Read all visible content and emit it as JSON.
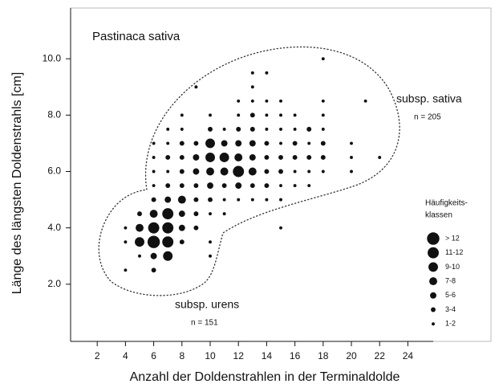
{
  "chart_data": {
    "type": "bubble",
    "annotations": {
      "title": "Pastinaca sativa",
      "sativa": "subsp. sativa",
      "sativa_n": "n = 205",
      "urens": "subsp. urens",
      "urens_n": "n = 151"
    },
    "ylabel": "Länge des längsten Doldenstrahls [cm]",
    "xlabel": "Anzahl der Doldenstrahlen in der Terminaldolde",
    "xlim": [
      0,
      30
    ],
    "ylim": [
      0,
      11.8
    ],
    "xticks": [
      2,
      4,
      6,
      8,
      10,
      12,
      14,
      16,
      18,
      20,
      22,
      24
    ],
    "yticks": [
      {
        "value": 2,
        "label": "2.0"
      },
      {
        "value": 4,
        "label": "4.0"
      },
      {
        "value": 6,
        "label": "6.0"
      },
      {
        "value": 8,
        "label": "8.0"
      },
      {
        "value": 10,
        "label": "10.0"
      }
    ],
    "color": "#111111",
    "series": [
      {
        "x": [
          18,
          13,
          14,
          9,
          13,
          12,
          13,
          14,
          15,
          18,
          21,
          8,
          10,
          12,
          13,
          14,
          15,
          16,
          18,
          7,
          8,
          10,
          11,
          12,
          13,
          14,
          15,
          16,
          17,
          18,
          6,
          7,
          8,
          9,
          10,
          11,
          12,
          13,
          14,
          15,
          16,
          17,
          18,
          20,
          6,
          7,
          8,
          9,
          10,
          11,
          12,
          13,
          14,
          15,
          16,
          17,
          18,
          20,
          22,
          6,
          7,
          8,
          9,
          10,
          11,
          12,
          13,
          14,
          15,
          16,
          17,
          18,
          20,
          6,
          7,
          8,
          9,
          10,
          11,
          12,
          13,
          14,
          15,
          16,
          17,
          6,
          7,
          8,
          9,
          10,
          11,
          12,
          13,
          14,
          15,
          5,
          6,
          7,
          8,
          9,
          10,
          11,
          4,
          5,
          6,
          7,
          8,
          9,
          15,
          4,
          5,
          6,
          7,
          8,
          10,
          5,
          6,
          7,
          10,
          4,
          6
        ],
        "values": [
          10,
          9.5,
          9.5,
          9,
          9,
          8.5,
          8.5,
          8.5,
          8.5,
          8.5,
          8.5,
          8,
          8,
          8,
          8,
          8,
          8,
          8,
          8,
          7.5,
          7.5,
          7.5,
          7.5,
          7.5,
          7.5,
          7.5,
          7.5,
          7.5,
          7.5,
          7.5,
          7,
          7,
          7,
          7,
          7,
          7,
          7,
          7,
          7,
          7,
          7,
          7,
          7,
          7,
          6.5,
          6.5,
          6.5,
          6.5,
          6.5,
          6.5,
          6.5,
          6.5,
          6.5,
          6.5,
          6.5,
          6.5,
          6.5,
          6.5,
          6.5,
          6,
          6,
          6,
          6,
          6,
          6,
          6,
          6,
          6,
          6,
          6,
          6,
          6,
          6,
          5.5,
          5.5,
          5.5,
          5.5,
          5.5,
          5.5,
          5.5,
          5.5,
          5.5,
          5.5,
          5.5,
          5.5,
          5,
          5,
          5,
          5,
          5,
          5,
          5,
          5,
          5,
          5,
          4.5,
          4.5,
          4.5,
          4.5,
          4.5,
          4.5,
          4.5,
          4,
          4,
          4,
          4,
          4,
          4,
          4,
          3.5,
          3.5,
          3.5,
          3.5,
          3.5,
          3.5,
          3,
          3,
          3,
          3,
          2.5,
          2.5
        ],
        "sizes": [
          1.5,
          1.5,
          1.5,
          1.5,
          1.5,
          1.5,
          1.5,
          1.5,
          1.5,
          1.5,
          1.5,
          1.5,
          1.5,
          1.5,
          3.5,
          1.5,
          1.5,
          1.5,
          1.5,
          1.5,
          1.5,
          3.5,
          1.5,
          3.5,
          3.5,
          1.5,
          1.5,
          1.5,
          3.5,
          1.5,
          1.5,
          1.5,
          3.5,
          3.5,
          9.5,
          5.5,
          5.5,
          5.5,
          3.5,
          1.5,
          3.5,
          1.5,
          3.5,
          1.5,
          1.5,
          3.5,
          3.5,
          5.5,
          9.5,
          9.5,
          7.5,
          5.5,
          3.5,
          3.5,
          3.5,
          3.5,
          3.5,
          1.5,
          1.5,
          1.5,
          1.5,
          3.5,
          5.5,
          7.5,
          7.5,
          11.5,
          7.5,
          3.5,
          3.5,
          1.5,
          1.5,
          1.5,
          1.5,
          1.5,
          3.5,
          3.5,
          3.5,
          5.5,
          3.5,
          5.5,
          3.5,
          3.5,
          1.5,
          1.5,
          1.5,
          3.5,
          5.5,
          7.5,
          3.5,
          3.5,
          1.5,
          1.5,
          1.5,
          1.5,
          1.5,
          3.5,
          7.5,
          11.5,
          5.5,
          3.5,
          1.5,
          1.5,
          1.5,
          7.5,
          11.5,
          11.5,
          5.5,
          3.5,
          1.5,
          1.5,
          9.5,
          13,
          11.5,
          3.5,
          1.5,
          1.5,
          5.5,
          9.5,
          1.5,
          1.5,
          3.5
        ]
      }
    ],
    "legend": {
      "title": [
        "Häufigkeits-",
        "klassen"
      ],
      "items": [
        {
          "label": "> 12",
          "size": 13
        },
        {
          "label": "11-12",
          "size": 11.5
        },
        {
          "label": "9-10",
          "size": 9.5
        },
        {
          "label": "7-8",
          "size": 7.5
        },
        {
          "label": "5-6",
          "size": 5.5
        },
        {
          "label": "3-4",
          "size": 3.5
        },
        {
          "label": "1-2",
          "size": 1.5
        }
      ]
    }
  }
}
